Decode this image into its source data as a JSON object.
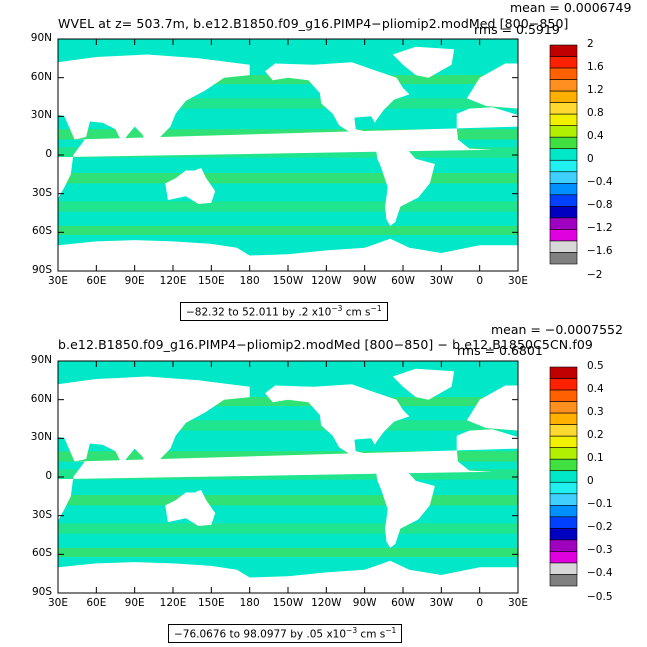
{
  "axes": {
    "lat_labels": [
      "90N",
      "60N",
      "30N",
      "0",
      "30S",
      "60S",
      "90S"
    ],
    "lon_labels": [
      "30E",
      "60E",
      "90E",
      "120E",
      "150E",
      "180",
      "150W",
      "120W",
      "90W",
      "60W",
      "30W",
      "0",
      "30E"
    ]
  },
  "colors": {
    "ocean_base": "#00e8c8",
    "ocean_alt": "#3ce060",
    "land": "#ffffff"
  },
  "panels": [
    {
      "title": "WVEL at z= 503.7m, b.e12.B1850.f09_g16.PIMP4−pliomip2.modMed [800−850]",
      "mean": "mean = 0.0006749",
      "rms": "rms = 0.5919",
      "range": {
        "text": "−82.32 to 52.011 by .2 x10",
        "exp": "−3",
        "units": " cm s",
        "units_exp": "−1"
      },
      "colorbar": {
        "labels": [
          "2",
          "1.6",
          "1.2",
          "0.8",
          "0.4",
          "0",
          "−0.4",
          "−0.8",
          "−1.2",
          "−1.6",
          "−2"
        ],
        "colors": [
          "#c00000",
          "#ff2000",
          "#ff6000",
          "#ff9020",
          "#ffb000",
          "#ffd830",
          "#f0f000",
          "#b0f000",
          "#40e040",
          "#00e8c8",
          "#20f0f0",
          "#40d0ff",
          "#0090ff",
          "#0040ff",
          "#0000c0",
          "#a000c0",
          "#e000e0",
          "#d8d8d8",
          "#808080"
        ]
      }
    },
    {
      "title": "b.e12.B1850.f09_g16.PIMP4−pliomip2.modMed [800−850] − b.e12.B1850C5CN.f09",
      "mean": "mean = −0.0007552",
      "rms": "rms = 0.6801",
      "range": {
        "text": "−76.0676 to 98.0977 by .05 x10",
        "exp": "−3",
        "units": " cm s",
        "units_exp": "−1"
      },
      "colorbar": {
        "labels": [
          "0.5",
          "0.4",
          "0.3",
          "0.2",
          "0.1",
          "0",
          "−0.1",
          "−0.2",
          "−0.3",
          "−0.4",
          "−0.5"
        ],
        "colors": [
          "#c00000",
          "#ff2000",
          "#ff6000",
          "#ff9020",
          "#ffb000",
          "#ffd830",
          "#f0f000",
          "#b0f000",
          "#40e040",
          "#00e8c8",
          "#20f0f0",
          "#40d0ff",
          "#0090ff",
          "#0040ff",
          "#0000c0",
          "#a000c0",
          "#e000e0",
          "#d8d8d8",
          "#808080"
        ]
      }
    }
  ]
}
